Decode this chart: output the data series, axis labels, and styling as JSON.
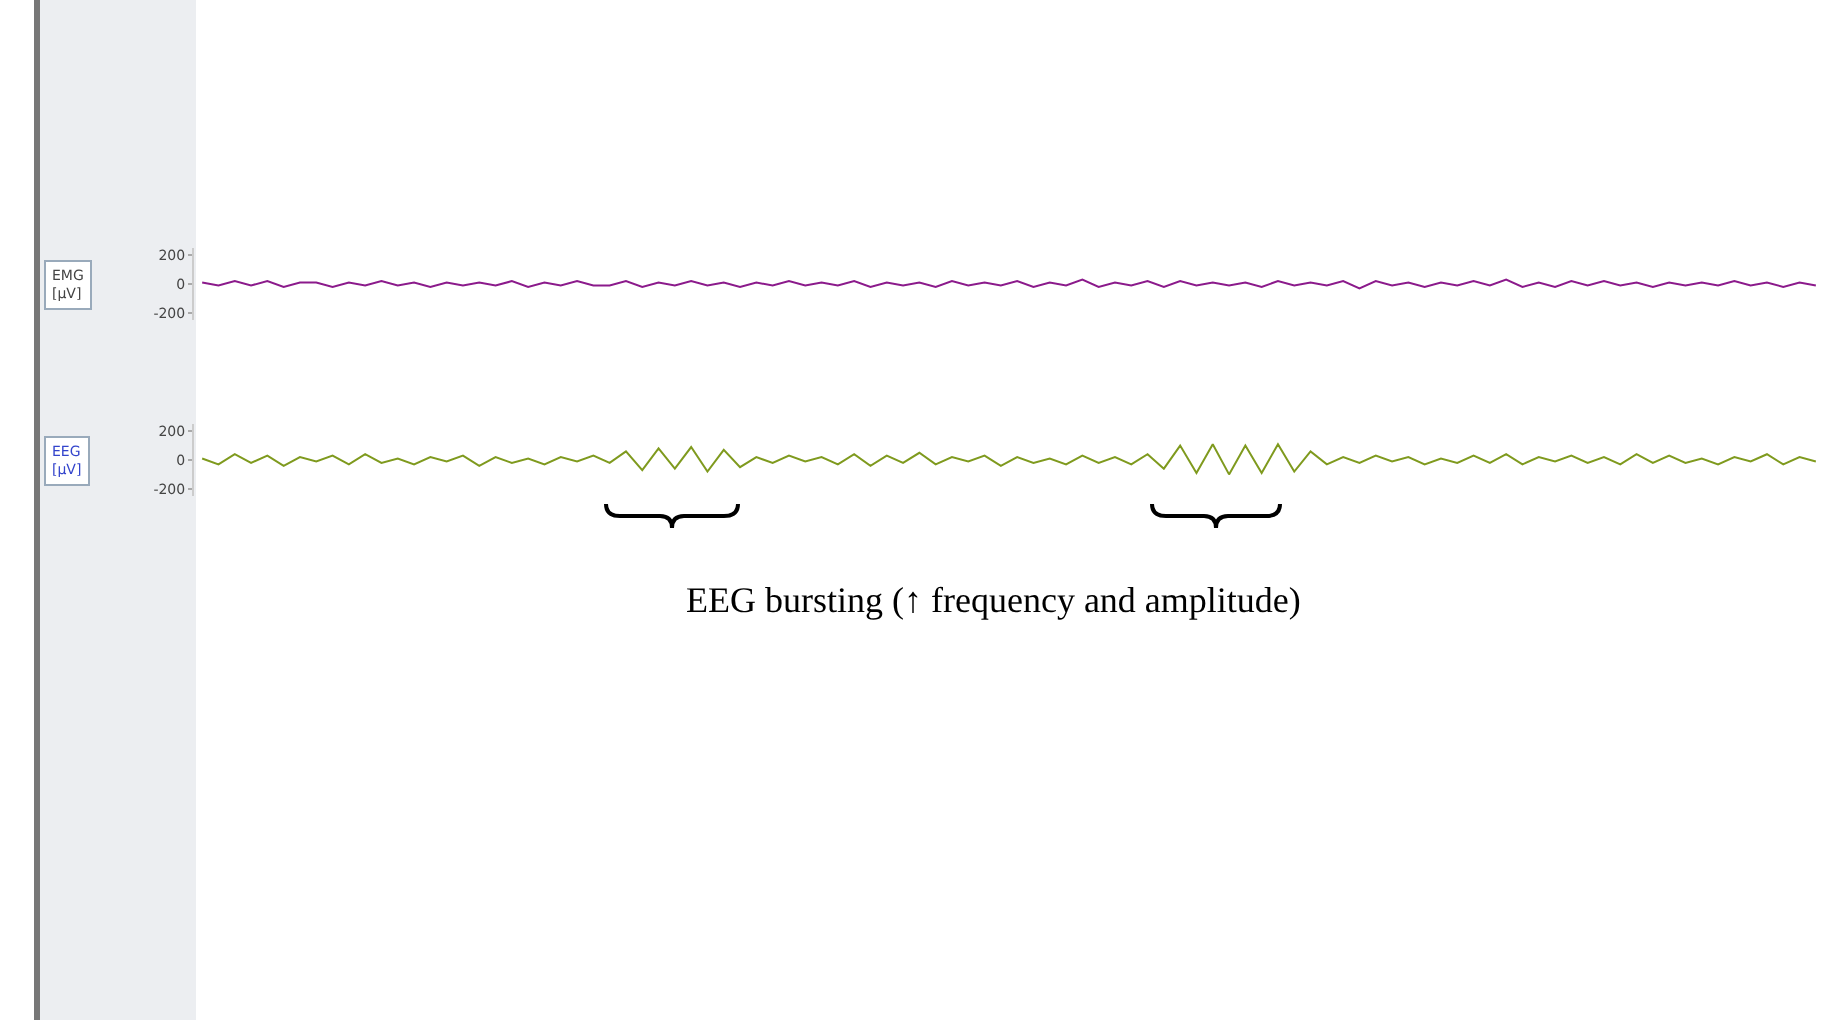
{
  "chart_data": [
    {
      "type": "line",
      "ylabel": "EMG [µV]",
      "ylim": [
        -250,
        250
      ],
      "yticks": [
        -200,
        0,
        200
      ],
      "categories": [
        null,
        null,
        null,
        null,
        null,
        null,
        null,
        null,
        null,
        null,
        null,
        null,
        null,
        null,
        null,
        null,
        null,
        null,
        null,
        null,
        null,
        null,
        null,
        null,
        null,
        null,
        null,
        null,
        null,
        null,
        null,
        null,
        null,
        null,
        null,
        null,
        null,
        null,
        null,
        null,
        null,
        null,
        null,
        null,
        null,
        null,
        null,
        null,
        null,
        null,
        null,
        null,
        null,
        null,
        null,
        null,
        null,
        null,
        null,
        null,
        null,
        null,
        null,
        null,
        null,
        null,
        null,
        null,
        null,
        null,
        null,
        null,
        null,
        null,
        null,
        null,
        null,
        null,
        null,
        null,
        null,
        null,
        null,
        null,
        null,
        null,
        null,
        null,
        null,
        null,
        null,
        null,
        null,
        null,
        null,
        null,
        null,
        null,
        null,
        null
      ],
      "series": [
        {
          "color": "#8b1a8b",
          "values": [
            10,
            -10,
            20,
            -10,
            20,
            -20,
            10,
            10,
            -20,
            10,
            -10,
            20,
            -10,
            10,
            -20,
            10,
            -10,
            10,
            -10,
            20,
            -20,
            10,
            -10,
            20,
            -10,
            -10,
            20,
            -20,
            10,
            -10,
            20,
            -10,
            10,
            -20,
            10,
            -10,
            20,
            -10,
            10,
            -10,
            20,
            -20,
            10,
            -10,
            10,
            -20,
            20,
            -10,
            10,
            -10,
            20,
            -20,
            10,
            -10,
            30,
            -20,
            10,
            -10,
            20,
            -20,
            20,
            -10,
            10,
            -10,
            10,
            -20,
            20,
            -10,
            10,
            -10,
            20,
            -30,
            20,
            -10,
            10,
            -20,
            10,
            -10,
            20,
            -10,
            30,
            -20,
            10,
            -20,
            20,
            -10,
            20,
            -10,
            10,
            -20,
            10,
            -10,
            10,
            -10,
            20,
            -10,
            10,
            -20,
            10,
            -10
          ]
        }
      ]
    },
    {
      "type": "line",
      "ylabel": "EEG [µV]",
      "ylim": [
        -250,
        250
      ],
      "yticks": [
        -200,
        0,
        200
      ],
      "annotations": [
        "EEG bursting (↑ frequency and amplitude)"
      ],
      "categories": [
        null,
        null,
        null,
        null,
        null,
        null,
        null,
        null,
        null,
        null,
        null,
        null,
        null,
        null,
        null,
        null,
        null,
        null,
        null,
        null,
        null,
        null,
        null,
        null,
        null,
        null,
        null,
        null,
        null,
        null,
        null,
        null,
        null,
        null,
        null,
        null,
        null,
        null,
        null,
        null,
        null,
        null,
        null,
        null,
        null,
        null,
        null,
        null,
        null,
        null,
        null,
        null,
        null,
        null,
        null,
        null,
        null,
        null,
        null,
        null,
        null,
        null,
        null,
        null,
        null,
        null,
        null,
        null,
        null,
        null,
        null,
        null,
        null,
        null,
        null,
        null,
        null,
        null,
        null,
        null,
        null,
        null,
        null,
        null,
        null,
        null,
        null,
        null,
        null,
        null,
        null,
        null,
        null,
        null,
        null,
        null,
        null,
        null,
        null,
        null
      ],
      "series": [
        {
          "color": "#7f9a1e",
          "values": [
            10,
            -30,
            40,
            -20,
            30,
            -40,
            20,
            -10,
            30,
            -30,
            40,
            -20,
            10,
            -30,
            20,
            -10,
            30,
            -40,
            20,
            -20,
            10,
            -30,
            20,
            -10,
            30,
            -20,
            60,
            -70,
            80,
            -60,
            90,
            -80,
            70,
            -50,
            20,
            -20,
            30,
            -10,
            20,
            -30,
            40,
            -40,
            30,
            -20,
            50,
            -30,
            20,
            -10,
            30,
            -40,
            20,
            -20,
            10,
            -30,
            30,
            -20,
            20,
            -30,
            40,
            -60,
            100,
            -90,
            110,
            -100,
            100,
            -90,
            110,
            -80,
            60,
            -30,
            20,
            -20,
            30,
            -10,
            20,
            -30,
            10,
            -20,
            30,
            -20,
            40,
            -30,
            20,
            -10,
            30,
            -20,
            20,
            -30,
            40,
            -20,
            30,
            -20,
            10,
            -30,
            20,
            -10,
            40,
            -30,
            20,
            -10
          ]
        }
      ]
    }
  ]
}
